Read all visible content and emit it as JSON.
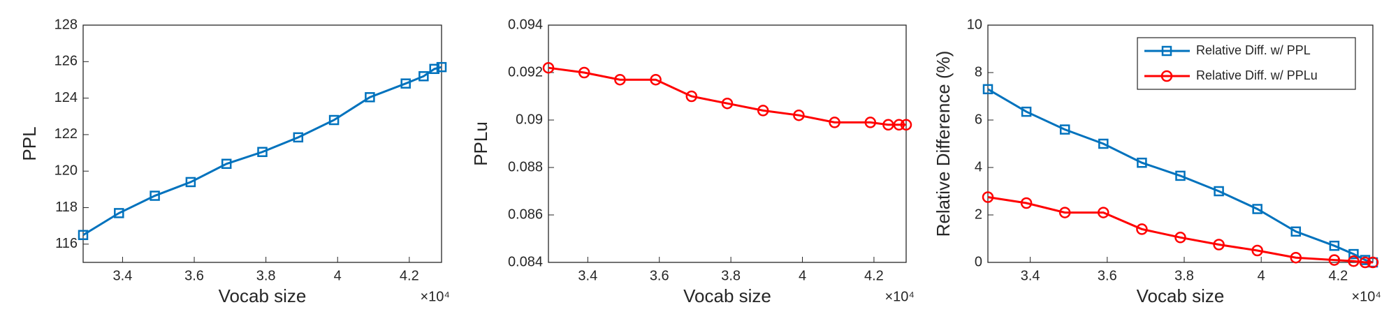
{
  "chart_data": [
    {
      "type": "line",
      "xlabel": "Vocab size",
      "ylabel": "PPL",
      "x_exponent": "×10⁴",
      "x": [
        32900,
        33900,
        34900,
        35900,
        36900,
        37900,
        38900,
        39900,
        40900,
        41900,
        42400,
        42700,
        42900
      ],
      "xlim": [
        32900,
        42900
      ],
      "xticks": [
        {
          "value": 34000,
          "label": "3.4"
        },
        {
          "value": 36000,
          "label": "3.6"
        },
        {
          "value": 38000,
          "label": "3.8"
        },
        {
          "value": 40000,
          "label": "4"
        },
        {
          "value": 42000,
          "label": "4.2"
        }
      ],
      "ylim": [
        115,
        128
      ],
      "yticks": [
        116,
        118,
        120,
        122,
        124,
        126,
        128
      ],
      "series": [
        {
          "color": "#0072bd",
          "marker": "square",
          "values": [
            116.5,
            117.7,
            118.65,
            119.4,
            120.4,
            121.05,
            121.85,
            122.8,
            124.05,
            124.8,
            125.2,
            125.6,
            125.7
          ]
        }
      ]
    },
    {
      "type": "line",
      "xlabel": "Vocab size",
      "ylabel": "PPLu",
      "x_exponent": "×10⁴",
      "x": [
        32900,
        33900,
        34900,
        35900,
        36900,
        37900,
        38900,
        39900,
        40900,
        41900,
        42400,
        42700,
        42900
      ],
      "xlim": [
        32900,
        42900
      ],
      "xticks": [
        {
          "value": 34000,
          "label": "3.4"
        },
        {
          "value": 36000,
          "label": "3.6"
        },
        {
          "value": 38000,
          "label": "3.8"
        },
        {
          "value": 40000,
          "label": "4"
        },
        {
          "value": 42000,
          "label": "4.2"
        }
      ],
      "ylim": [
        0.084,
        0.094
      ],
      "yticks": [
        0.084,
        0.086,
        0.088,
        0.09,
        0.092,
        0.094
      ],
      "series": [
        {
          "color": "#ff0000",
          "marker": "circle",
          "values": [
            0.0922,
            0.092,
            0.0917,
            0.0917,
            0.091,
            0.0907,
            0.0904,
            0.0902,
            0.0899,
            0.0899,
            0.0898,
            0.0898,
            0.0898
          ]
        }
      ]
    },
    {
      "type": "line",
      "xlabel": "Vocab size",
      "ylabel": "Relative Difference (%)",
      "x_exponent": "×10⁴",
      "x": [
        32900,
        33900,
        34900,
        35900,
        36900,
        37900,
        38900,
        39900,
        40900,
        41900,
        42400,
        42700,
        42900
      ],
      "xlim": [
        32900,
        42900
      ],
      "xticks": [
        {
          "value": 34000,
          "label": "3.4"
        },
        {
          "value": 36000,
          "label": "3.6"
        },
        {
          "value": 38000,
          "label": "3.8"
        },
        {
          "value": 40000,
          "label": "4"
        },
        {
          "value": 42000,
          "label": "4.2"
        }
      ],
      "ylim": [
        0,
        10
      ],
      "yticks": [
        0,
        2,
        4,
        6,
        8,
        10
      ],
      "legend": "northeast",
      "series": [
        {
          "name": "Relative Diff. w/ PPL",
          "color": "#0072bd",
          "marker": "square",
          "values": [
            7.3,
            6.35,
            5.6,
            5.0,
            4.2,
            3.65,
            3.0,
            2.25,
            1.3,
            0.7,
            0.35,
            0.1,
            0.0
          ]
        },
        {
          "name": "Relative Diff. w/ PPLu",
          "color": "#ff0000",
          "marker": "circle",
          "values": [
            2.75,
            2.5,
            2.1,
            2.1,
            1.4,
            1.05,
            0.75,
            0.5,
            0.2,
            0.1,
            0.05,
            0.0,
            0.0
          ]
        }
      ]
    }
  ]
}
